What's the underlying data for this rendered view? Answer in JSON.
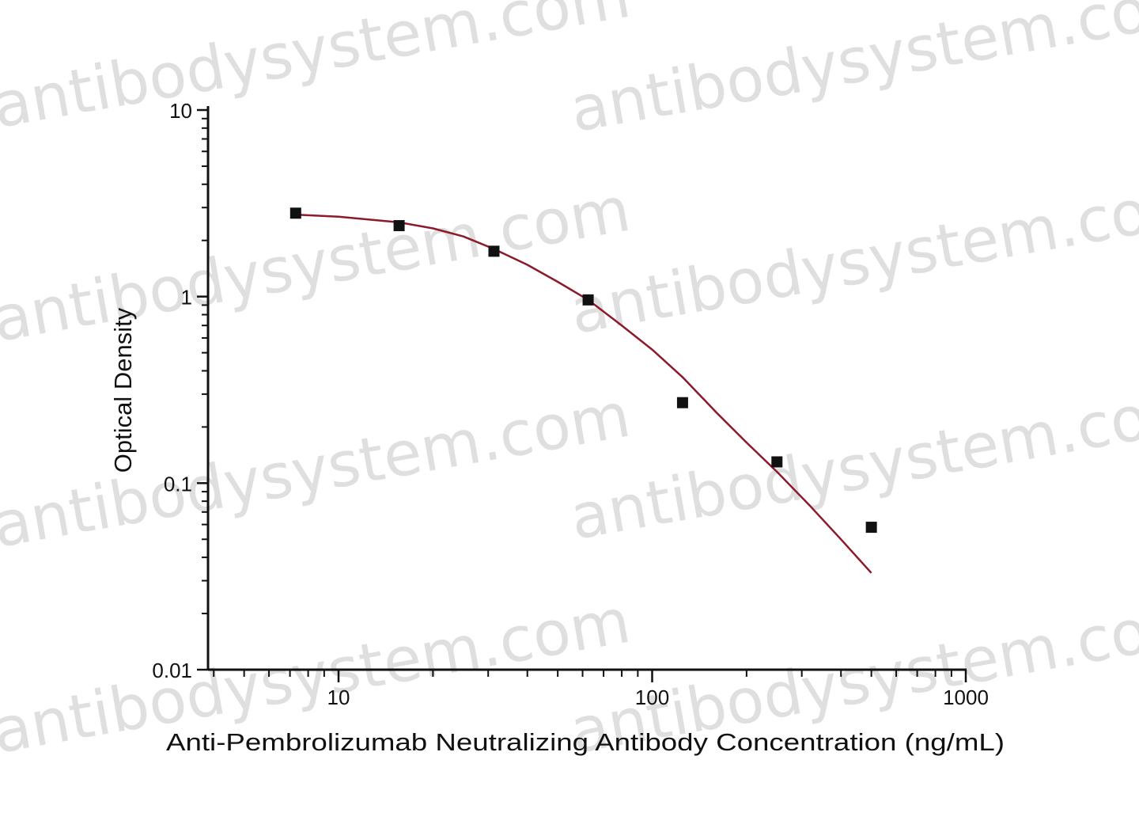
{
  "chart_data": {
    "type": "scatter",
    "xlabel": "Anti-Pembrolizumab Neutralizing Antibody Concentration (ng/mL)",
    "ylabel": "Optical Density",
    "x_scale": "log",
    "y_scale": "log",
    "xlim": [
      4,
      1000
    ],
    "ylim": [
      0.01,
      10
    ],
    "x_ticks": [
      10,
      100,
      1000
    ],
    "x_tick_labels": [
      "10",
      "100",
      "1000"
    ],
    "y_ticks": [
      0.01,
      0.1,
      1,
      10
    ],
    "y_tick_labels": [
      "0.01",
      "0.1",
      "1",
      "10"
    ],
    "grid": false,
    "series": [
      {
        "kind": "points",
        "marker": "square",
        "color": "#111111",
        "x": [
          7.3,
          15.6,
          31.3,
          62.5,
          125,
          250,
          500
        ],
        "y": [
          2.8,
          2.4,
          1.75,
          0.96,
          0.27,
          0.13,
          0.058
        ]
      },
      {
        "kind": "fitted-curve",
        "color": "#8b1a2b",
        "x": [
          7.3,
          10,
          15.6,
          20,
          25,
          31.3,
          40,
          50,
          62.5,
          80,
          100,
          125,
          160,
          200,
          250,
          320,
          400,
          500
        ],
        "y": [
          2.75,
          2.68,
          2.5,
          2.32,
          2.1,
          1.8,
          1.48,
          1.2,
          0.96,
          0.7,
          0.52,
          0.37,
          0.24,
          0.165,
          0.115,
          0.075,
          0.05,
          0.033
        ]
      }
    ]
  },
  "watermark": {
    "text": "antibodysystem.com",
    "color": "#b9b9b9"
  }
}
